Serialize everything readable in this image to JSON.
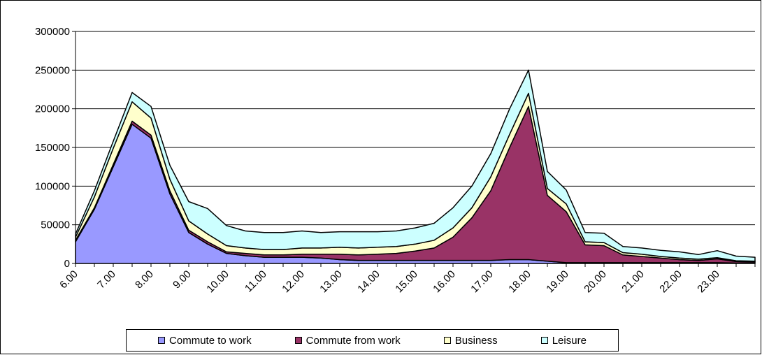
{
  "chart_data": {
    "type": "area",
    "stacked": true,
    "title": "",
    "xlabel": "",
    "ylabel": "",
    "ylim": [
      0,
      300000
    ],
    "yticks": [
      0,
      50000,
      100000,
      150000,
      200000,
      250000,
      300000
    ],
    "grid": "horizontal",
    "legend": "bottom",
    "x_tick_labels": [
      "6.00",
      "7.00",
      "8.00",
      "9.00",
      "10.00",
      "11.00",
      "12.00",
      "13.00",
      "14.00",
      "15.00",
      "16.00",
      "17.00",
      "18.00",
      "19.00",
      "20.00",
      "21.00",
      "22.00",
      "23.00"
    ],
    "x": [
      6.0,
      6.5,
      7.0,
      7.5,
      8.0,
      8.5,
      9.0,
      9.5,
      10.0,
      10.5,
      11.0,
      11.5,
      12.0,
      12.5,
      13.0,
      13.5,
      14.0,
      14.5,
      15.0,
      15.5,
      16.0,
      16.5,
      17.0,
      17.5,
      18.0,
      18.5,
      19.0,
      19.5,
      20.0,
      20.5,
      21.0,
      21.5,
      22.0,
      22.5,
      23.0,
      23.5,
      24.0
    ],
    "series": [
      {
        "name": "Commute to work",
        "color": "#9999ff",
        "values": [
          28000,
          70000,
          125000,
          180000,
          162000,
          90000,
          40000,
          25000,
          13000,
          10000,
          8000,
          8000,
          8000,
          7000,
          5000,
          4000,
          4000,
          4000,
          4000,
          4000,
          4000,
          4000,
          4000,
          5000,
          5000,
          3000,
          1000,
          1000,
          1000,
          1000,
          1000,
          1000,
          1000,
          1000,
          1000,
          500,
          500
        ]
      },
      {
        "name": "Commute from work",
        "color": "#993366",
        "values": [
          2000,
          2000,
          3000,
          4000,
          4000,
          4000,
          3000,
          3000,
          2000,
          3000,
          3000,
          3000,
          4000,
          5000,
          7000,
          7000,
          8000,
          9000,
          12000,
          16000,
          30000,
          55000,
          90000,
          145000,
          198000,
          85000,
          66000,
          23000,
          22000,
          10000,
          8000,
          6000,
          4000,
          3000,
          5000,
          2000,
          1500
        ]
      },
      {
        "name": "Business",
        "color": "#ffffcc",
        "values": [
          4000,
          14000,
          21000,
          25000,
          22000,
          15000,
          12000,
          10000,
          8000,
          7000,
          7000,
          7000,
          8000,
          8000,
          9000,
          9000,
          9000,
          9000,
          9000,
          10000,
          12000,
          13000,
          18000,
          17000,
          17000,
          9000,
          10000,
          4000,
          4000,
          3000,
          3000,
          2000,
          2000,
          1500,
          1500,
          1000,
          1000
        ]
      },
      {
        "name": "Leisure",
        "color": "#ccffff",
        "values": [
          4000,
          8000,
          9000,
          12000,
          15000,
          18000,
          25000,
          33000,
          26000,
          22000,
          22000,
          22000,
          22000,
          20000,
          20000,
          21000,
          20000,
          20000,
          21000,
          22000,
          26000,
          28000,
          30000,
          33000,
          30000,
          22000,
          18000,
          12000,
          12000,
          8000,
          8000,
          8000,
          8000,
          6000,
          9000,
          6000,
          5000
        ]
      }
    ]
  }
}
